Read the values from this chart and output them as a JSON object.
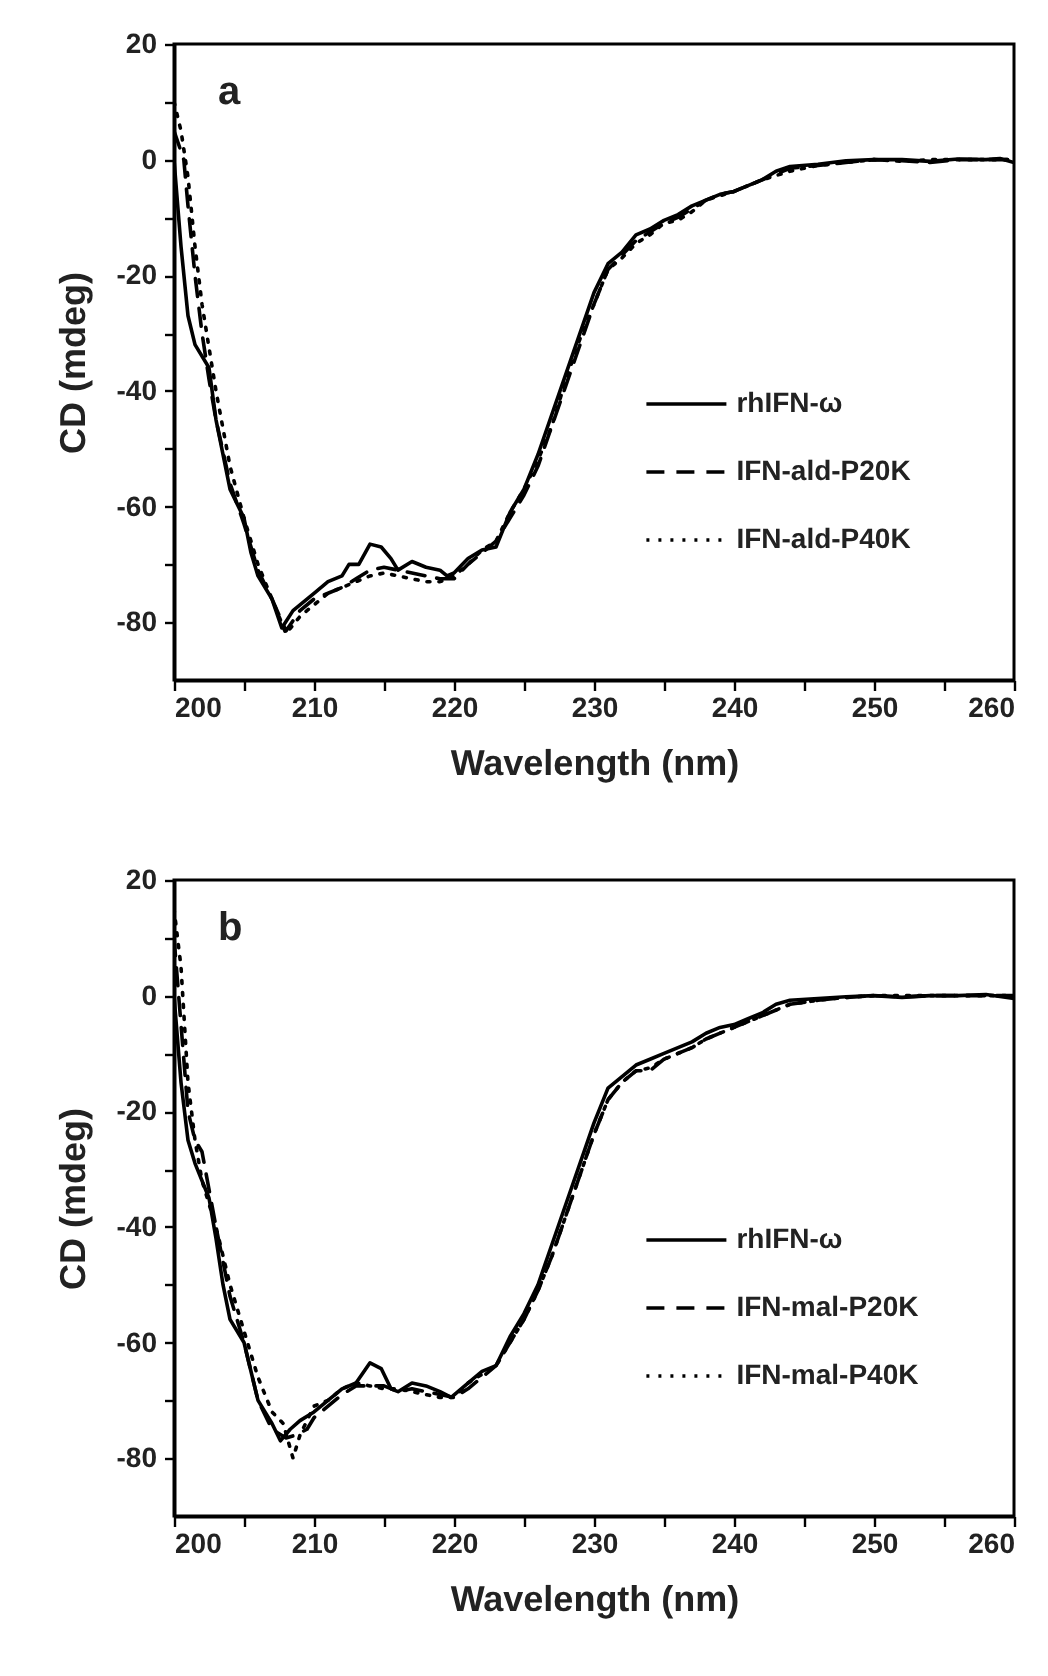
{
  "chart_data": [
    {
      "type": "line",
      "xlabel": "Wavelength (nm)",
      "ylabel": "CD (mdeg)",
      "annotations": [
        "a"
      ],
      "legend": "right",
      "xlim": [
        200,
        260
      ],
      "ylim": [
        -90,
        20
      ],
      "xticks": [
        200,
        {
          "value": 205,
          "label": null
        },
        210,
        {
          "value": 215,
          "label": null
        },
        220,
        {
          "value": 225,
          "label": null
        },
        230,
        {
          "value": 235,
          "label": null
        },
        240,
        {
          "value": 245,
          "label": null
        },
        250,
        {
          "value": 255,
          "label": null
        },
        260
      ],
      "yticks": [
        -80,
        {
          "value": -70,
          "label": null
        },
        -60,
        {
          "value": -50,
          "label": null
        },
        -40,
        {
          "value": -30,
          "label": null
        },
        -20,
        {
          "value": -10,
          "label": null
        },
        0,
        {
          "value": 10,
          "label": null
        },
        20
      ],
      "series": [
        {
          "name": "rhIFN-ω",
          "color": "#000000",
          "line_style": "solid",
          "x": [
            200,
            200.5,
            201,
            201.5,
            202.5,
            203,
            204,
            205,
            205.5,
            206,
            207,
            207.7,
            208.5,
            209,
            210,
            211,
            212,
            212.5,
            213.2,
            214,
            214.8,
            215.5,
            216,
            217,
            218,
            219,
            219.5,
            220,
            221,
            222,
            223,
            224,
            225,
            226,
            227,
            228,
            229,
            230,
            231,
            232,
            233,
            234,
            235,
            236,
            237,
            238,
            239,
            240,
            241,
            242,
            243,
            244,
            246,
            248,
            250,
            252,
            254,
            256,
            258,
            259,
            260
          ],
          "values": [
            0,
            -15,
            -27,
            -32,
            -36,
            -45,
            -57,
            -62,
            -68,
            -72,
            -76,
            -81,
            -78,
            -77,
            -75,
            -73,
            -72,
            -70,
            -70,
            -66.5,
            -67,
            -69,
            -71,
            -69.5,
            -70.5,
            -71,
            -72,
            -71.5,
            -69,
            -67.5,
            -67,
            -61,
            -57,
            -51,
            -44,
            -37,
            -30,
            -23,
            -18,
            -16,
            -13,
            -12,
            -10.5,
            -9.5,
            -8,
            -7,
            -6,
            -5.5,
            -4.5,
            -3.5,
            -2,
            -1.2,
            -0.8,
            -0.2,
            0,
            0,
            -0.3,
            0.1,
            0,
            0.2,
            -0.5
          ]
        },
        {
          "name": "IFN-ald-P20K",
          "color": "#000000",
          "line_style": "dashed",
          "x": [
            200,
            200.7,
            201,
            201.5,
            202,
            202.5,
            203,
            204,
            205,
            206,
            207,
            208,
            209,
            210,
            211,
            212,
            213,
            214,
            215,
            216,
            217,
            218,
            219,
            220,
            221,
            222,
            223,
            224,
            225,
            226,
            227,
            228,
            229,
            230,
            231,
            232,
            233,
            234,
            235,
            236,
            237,
            238,
            239,
            240,
            242,
            244,
            246,
            248,
            250,
            252,
            254,
            256,
            258,
            260
          ],
          "values": [
            5,
            0,
            -8,
            -20,
            -30,
            -38,
            -45,
            -56,
            -63,
            -71,
            -76,
            -81.5,
            -78,
            -76,
            -75,
            -74,
            -72.5,
            -71,
            -70.5,
            -71,
            -71.5,
            -72,
            -72.5,
            -72.5,
            -70,
            -68,
            -66,
            -62,
            -58,
            -53,
            -46,
            -39,
            -32,
            -25,
            -19,
            -16.5,
            -14,
            -12.5,
            -11,
            -10,
            -8.5,
            -7,
            -6,
            -5.5,
            -3.5,
            -1.5,
            -1,
            -0.5,
            0,
            -0.2,
            -0.5,
            0,
            0,
            0
          ]
        },
        {
          "name": "IFN-ald-P40K",
          "color": "#000000",
          "line_style": "dotted",
          "x": [
            200,
            200.5,
            201,
            201.5,
            202,
            203,
            204,
            205,
            206,
            207,
            208,
            209,
            210,
            211,
            212,
            213,
            214,
            215,
            216,
            217,
            218,
            219,
            220,
            221,
            222,
            223,
            224,
            225,
            226,
            227,
            228,
            229,
            230,
            231,
            232,
            233,
            234,
            235,
            236,
            237,
            238,
            240,
            242,
            244,
            246,
            248,
            250,
            252,
            254,
            256,
            258,
            260
          ],
          "values": [
            10,
            5,
            -3,
            -15,
            -25,
            -40,
            -53,
            -62,
            -70,
            -76,
            -82,
            -79,
            -77,
            -75,
            -74,
            -73,
            -72,
            -71.5,
            -72,
            -72.5,
            -73,
            -73,
            -72,
            -70,
            -67.5,
            -66,
            -61,
            -57,
            -52,
            -46,
            -38,
            -31,
            -25,
            -19,
            -17,
            -14.5,
            -13,
            -11,
            -10.5,
            -9,
            -7,
            -5.5,
            -3.5,
            -2,
            -1,
            -0.5,
            0,
            -0.3,
            0,
            0,
            0,
            0
          ]
        }
      ]
    },
    {
      "type": "line",
      "xlabel": "Wavelength (nm)",
      "ylabel": "CD (mdeg)",
      "annotations": [
        "b"
      ],
      "legend": "right",
      "xlim": [
        200,
        260
      ],
      "ylim": [
        -90,
        20
      ],
      "xticks": [
        200,
        {
          "value": 205,
          "label": null
        },
        210,
        {
          "value": 215,
          "label": null
        },
        220,
        {
          "value": 225,
          "label": null
        },
        230,
        {
          "value": 235,
          "label": null
        },
        240,
        {
          "value": 245,
          "label": null
        },
        250,
        {
          "value": 255,
          "label": null
        },
        260
      ],
      "yticks": [
        -80,
        {
          "value": -70,
          "label": null
        },
        -60,
        {
          "value": -50,
          "label": null
        },
        -40,
        {
          "value": -30,
          "label": null
        },
        -20,
        {
          "value": -10,
          "label": null
        },
        0,
        {
          "value": 10,
          "label": null
        },
        20
      ],
      "series": [
        {
          "name": "rhIFN-ω",
          "color": "#000000",
          "line_style": "solid",
          "x": [
            200,
            200.5,
            201,
            201.5,
            202.5,
            203,
            203.5,
            204,
            205,
            205.5,
            206,
            207,
            207.6,
            208.3,
            209,
            210,
            211,
            212,
            213,
            214,
            214.8,
            215.5,
            216,
            217,
            218,
            219,
            219.8,
            221,
            222,
            223,
            224,
            225,
            226,
            227,
            228,
            229,
            230,
            231,
            232,
            233,
            234,
            235,
            236,
            237,
            238,
            239,
            240,
            241,
            242,
            243,
            244,
            246,
            248,
            250,
            252,
            254,
            256,
            258,
            260
          ],
          "values": [
            0,
            -15,
            -25,
            -29,
            -35,
            -42,
            -50,
            -56,
            -60,
            -65,
            -70,
            -74,
            -77,
            -75,
            -73.5,
            -72,
            -70,
            -68,
            -67,
            -63.5,
            -64.5,
            -68,
            -68.5,
            -67,
            -67.5,
            -68.5,
            -69.5,
            -67,
            -65,
            -64,
            -59,
            -55,
            -50,
            -43,
            -36,
            -29,
            -22,
            -16,
            -14,
            -12,
            -11,
            -10,
            -9,
            -8,
            -6.5,
            -5.5,
            -5,
            -4,
            -3,
            -1.5,
            -0.8,
            -0.5,
            -0.2,
            0,
            -0.3,
            0,
            0,
            0.2,
            -0.5
          ]
        },
        {
          "name": "IFN-mal-P20K",
          "color": "#000000",
          "line_style": "dashed",
          "x": [
            200,
            200.5,
            201,
            201.5,
            202,
            203,
            204,
            205,
            206,
            207,
            208,
            208.7,
            209.5,
            210,
            211,
            212,
            213,
            214,
            215,
            216,
            217,
            218,
            219,
            220,
            221,
            222,
            223,
            224,
            225,
            226,
            227,
            228,
            229,
            230,
            231,
            232,
            233,
            234,
            235,
            236,
            237,
            238,
            240,
            242,
            244,
            246,
            248,
            250,
            252,
            254,
            256,
            258,
            260
          ],
          "values": [
            10,
            -5,
            -20,
            -25,
            -27,
            -40,
            -52,
            -60,
            -70,
            -75,
            -76.5,
            -76,
            -75,
            -73,
            -71,
            -69,
            -67.5,
            -67.5,
            -67.5,
            -68.5,
            -68,
            -68.5,
            -69,
            -69.5,
            -68,
            -66,
            -64,
            -60,
            -56,
            -51,
            -45,
            -38,
            -31,
            -24,
            -18,
            -15,
            -13,
            -13,
            -11,
            -10,
            -9,
            -7.5,
            -5.5,
            -3.5,
            -1.5,
            -0.8,
            -0.3,
            0,
            -0.2,
            0,
            0,
            0,
            0
          ]
        },
        {
          "name": "IFN-mal-P40K",
          "color": "#000000",
          "line_style": "dotted",
          "x": [
            200,
            200.5,
            201,
            201.5,
            202,
            203,
            204,
            205,
            206,
            207,
            207.8,
            208.5,
            209,
            210,
            211,
            212,
            213,
            214,
            215,
            216,
            217,
            218,
            219,
            220,
            221,
            222,
            223,
            224,
            225,
            226,
            227,
            228,
            229,
            230,
            231,
            232,
            233,
            234,
            235,
            236,
            237,
            238,
            240,
            242,
            244,
            246,
            248,
            250,
            252,
            254,
            256,
            258,
            260
          ],
          "values": [
            15,
            5,
            -15,
            -25,
            -32,
            -40,
            -50,
            -58,
            -66,
            -72,
            -74,
            -80,
            -76,
            -71,
            -70,
            -68,
            -67,
            -67.5,
            -68,
            -68,
            -68.5,
            -69,
            -69.5,
            -69.5,
            -67,
            -65.5,
            -64,
            -60,
            -56,
            -51,
            -45,
            -38,
            -31,
            -24,
            -18,
            -15,
            -13,
            -12.5,
            -11,
            -10,
            -9,
            -7.5,
            -5.5,
            -3.5,
            -1.5,
            -0.8,
            -0.3,
            0,
            0,
            0,
            0,
            0,
            0
          ]
        }
      ]
    }
  ]
}
